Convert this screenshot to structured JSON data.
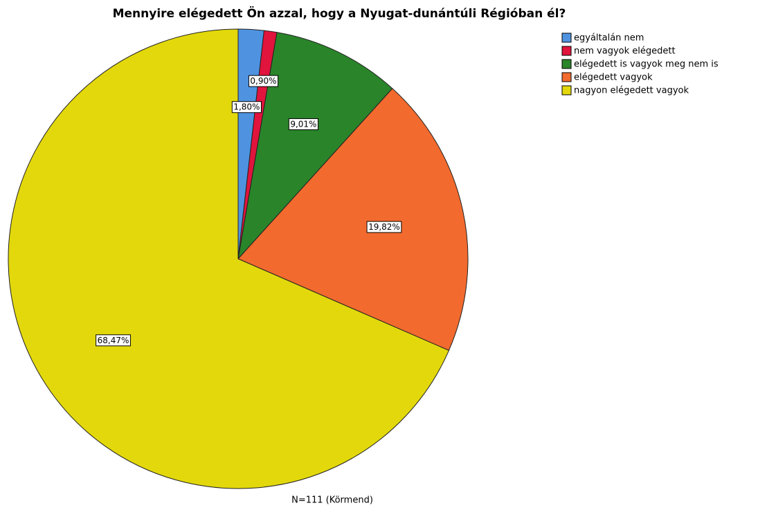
{
  "chart_data": {
    "type": "pie",
    "title": "Mennyire elégedett Ön azzal, hogy a Nyugat-dunántúli Régióban él?",
    "categories": [
      "egyáltalán nem",
      "nem vagyok elégedett",
      "elégedett is vagyok meg nem is",
      "elégedett vagyok",
      "nagyon elégedett vagyok"
    ],
    "values": [
      1.8,
      0.9,
      9.01,
      19.82,
      68.47
    ],
    "value_labels": [
      "1,80%",
      "0,90%",
      "9,01%",
      "19,82%",
      "68,47%"
    ],
    "colors": [
      "#4f93e0",
      "#e0143c",
      "#2a842a",
      "#f26a2e",
      "#e2d80c"
    ],
    "legend": "top-right",
    "footnote": "N=111 (Körmend)"
  }
}
